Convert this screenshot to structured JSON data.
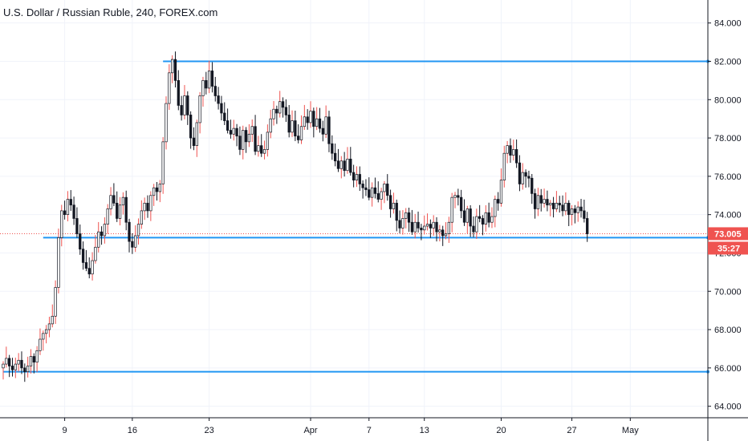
{
  "header": {
    "title": "U.S. Dollar / Russian Ruble, 240, FOREX.com"
  },
  "colors": {
    "up": "#ffffff",
    "down": "#131722",
    "wick_up": "#ef5350",
    "wick_down": "#131722",
    "hline": "#2196f3",
    "price_tag": "#ef5350",
    "grid": "#f0f3fa",
    "axis": "#131722"
  },
  "chart_data": {
    "type": "candlestick",
    "title": "U.S. Dollar / Russian Ruble, 240, FOREX.com",
    "ylim": [
      63.4,
      85.2
    ],
    "y_ticks": [
      "64.000",
      "66.000",
      "68.000",
      "70.000",
      "72.000",
      "74.000",
      "76.000",
      "78.000",
      "80.000",
      "82.000",
      "84.000"
    ],
    "x_ticks": [
      {
        "label": "9",
        "i": 20
      },
      {
        "label": "16",
        "i": 42
      },
      {
        "label": "23",
        "i": 67
      },
      {
        "label": "Apr",
        "i": 100
      },
      {
        "label": "7",
        "i": 119
      },
      {
        "label": "13",
        "i": 137
      },
      {
        "label": "20",
        "i": 162
      },
      {
        "label": "27",
        "i": 185
      },
      {
        "label": "May",
        "i": 204
      }
    ],
    "grid": true,
    "current_price": {
      "value": 73.005,
      "label": "73.005",
      "countdown": "35:27"
    },
    "horizontal_lines": [
      {
        "name": "resistance-82",
        "value": 82.0,
        "i_start": 52
      },
      {
        "name": "support-72.8",
        "value": 72.8,
        "i_start": 13
      },
      {
        "name": "support-65.8",
        "value": 65.8,
        "i_start": 0
      }
    ],
    "close": [
      66.2,
      66.5,
      66.1,
      65.9,
      66.2,
      66.4,
      66.0,
      65.8,
      66.1,
      66.6,
      66.3,
      66.9,
      67.5,
      67.8,
      68.0,
      68.3,
      68.7,
      70.2,
      72.8,
      74.2,
      74.0,
      74.8,
      74.5,
      73.8,
      73.0,
      72.2,
      71.5,
      71.2,
      70.9,
      71.6,
      72.3,
      73.1,
      72.9,
      73.5,
      74.3,
      75.0,
      74.6,
      73.8,
      74.5,
      74.9,
      73.6,
      72.6,
      72.3,
      72.9,
      73.5,
      74.2,
      74.6,
      74.2,
      75.0,
      75.4,
      75.2,
      75.6,
      77.8,
      79.8,
      81.4,
      82.1,
      81.0,
      79.7,
      79.2,
      80.2,
      79.2,
      78.0,
      77.6,
      78.8,
      80.2,
      81.0,
      80.6,
      81.5,
      80.7,
      80.2,
      79.8,
      79.3,
      78.9,
      78.4,
      78.2,
      78.5,
      78.1,
      77.4,
      78.4,
      77.8,
      78.2,
      78.6,
      77.3,
      77.6,
      77.2,
      77.4,
      78.3,
      79.0,
      79.5,
      79.3,
      79.9,
      79.6,
      79.2,
      78.3,
      78.9,
      78.1,
      77.9,
      78.6,
      79.1,
      78.8,
      79.4,
      78.6,
      79.0,
      78.5,
      78.2,
      79.1,
      77.7,
      77.2,
      76.8,
      76.4,
      76.8,
      76.3,
      76.9,
      76.2,
      75.8,
      76.1,
      75.6,
      75.4,
      75.3,
      74.9,
      75.4,
      75.1,
      74.8,
      75.2,
      75.6,
      75.0,
      74.3,
      74.6,
      73.7,
      73.3,
      73.8,
      74.1,
      73.6,
      73.1,
      73.6,
      73.3,
      73.2,
      73.4,
      73.5,
      73.3,
      73.6,
      73.1,
      73.2,
      72.9,
      73.0,
      73.6,
      74.9,
      75.0,
      74.9,
      74.2,
      73.6,
      74.3,
      73.4,
      73.1,
      73.9,
      73.8,
      73.5,
      74.1,
      73.6,
      73.9,
      74.8,
      74.6,
      75.8,
      77.2,
      77.6,
      77.1,
      77.4,
      76.7,
      75.6,
      76.2,
      76.0,
      75.9,
      75.1,
      74.3,
      75.0,
      74.6,
      74.8,
      74.5,
      74.6,
      74.3,
      74.6,
      74.5,
      74.2,
      74.6,
      74.0,
      74.3,
      74.1,
      74.4,
      74.2,
      73.8,
      73.0
    ]
  }
}
